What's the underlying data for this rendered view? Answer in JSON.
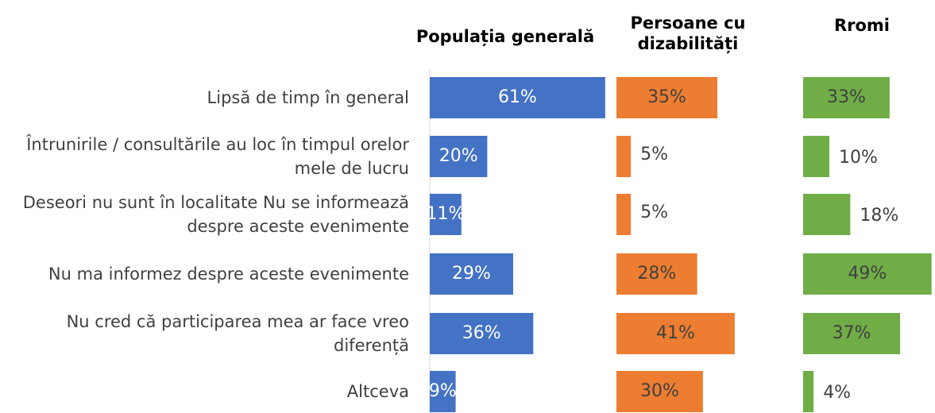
{
  "chart_data": {
    "type": "bar",
    "orientation": "horizontal",
    "categories": [
      "Lipsă de timp în general",
      "Întrunirile / consultările au loc în timpul orelor mele de lucru",
      "Deseori nu sunt în localitate Nu se informează despre aceste evenimente",
      "Nu ma informez despre aceste evenimente",
      "Nu cred că participarea mea ar face vreo diferență",
      "Altceva"
    ],
    "series": [
      {
        "name": "Populația generală",
        "color": "#4472c4",
        "values": [
          61,
          20,
          11,
          29,
          36,
          9
        ],
        "value_labels": [
          "61%",
          "20%",
          "11%",
          "29%",
          "36%",
          "9%"
        ]
      },
      {
        "name": "Persoane cu dizabilități",
        "color": "#ed7d31",
        "values": [
          35,
          5,
          5,
          28,
          41,
          30
        ],
        "value_labels": [
          "35%",
          "5%",
          "5%",
          "28%",
          "41%",
          "30%"
        ]
      },
      {
        "name": "Rromi",
        "color": "#70ad47",
        "values": [
          33,
          10,
          18,
          49,
          37,
          4
        ],
        "value_labels": [
          "33%",
          "10%",
          "18%",
          "49%",
          "37%",
          "4%"
        ]
      }
    ]
  }
}
